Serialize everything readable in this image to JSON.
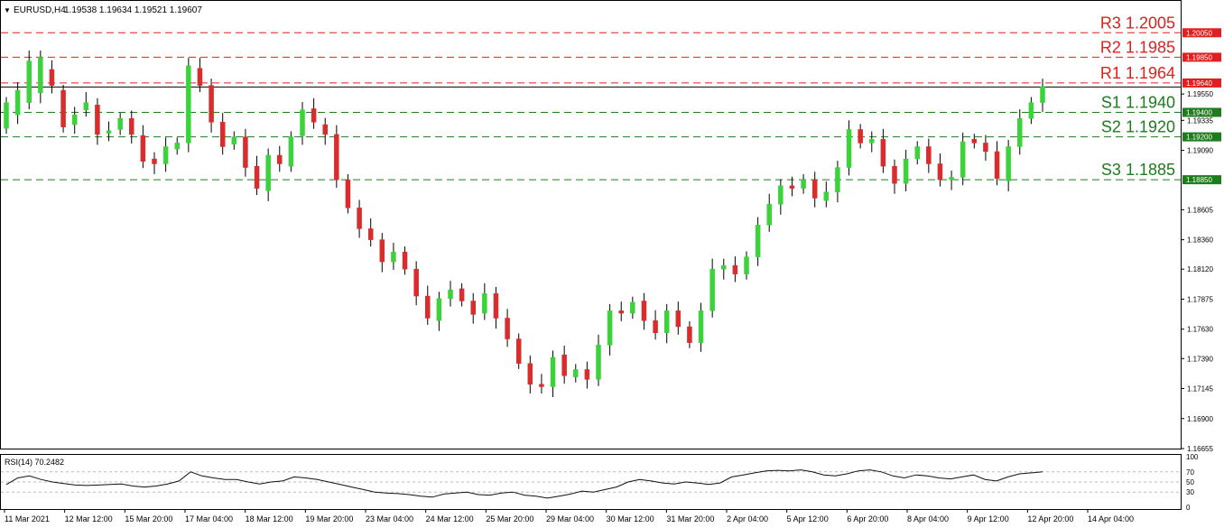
{
  "header": {
    "symbol_label": "EURUSD,H4",
    "ohlc_values": "1.19538 1.19634 1.19521 1.19607",
    "dropdown_glyph": "▼"
  },
  "rsi_header": {
    "label": "RSI(14) 70.2482"
  },
  "colors": {
    "bull": "#3cd23c",
    "bear": "#d92c2c",
    "resistance": "#e02020",
    "support": "#1e7b1e",
    "rsi_line": "#111111",
    "grid": "#bbbbbb"
  },
  "chart_data": [
    {
      "type": "candlestick",
      "title": "EURUSD,H4",
      "ylim": [
        1.16655,
        1.2031
      ],
      "price_axis_ticks": [
        "1.19550",
        "1.19335",
        "1.19090",
        "1.18605",
        "1.18360",
        "1.18120",
        "1.17875",
        "1.17630",
        "1.17390",
        "1.17145",
        "1.16900",
        "1.16655"
      ],
      "time_axis_labels": [
        "11 Mar 2021",
        "12 Mar 12:00",
        "15 Mar 20:00",
        "17 Mar 04:00",
        "18 Mar 12:00",
        "19 Mar 20:00",
        "23 Mar 04:00",
        "24 Mar 12:00",
        "25 Mar 20:00",
        "29 Mar 04:00",
        "30 Mar 12:00",
        "31 Mar 20:00",
        "2 Apr 04:00",
        "5 Apr 12:00",
        "6 Apr 20:00",
        "8 Apr 04:00",
        "9 Apr 12:00",
        "12 Apr 20:00",
        "14 Apr 04:00"
      ],
      "levels": [
        {
          "name": "R3",
          "value": 1.2005,
          "label": "R3 1.2005",
          "tag": "1.20050",
          "kind": "resistance"
        },
        {
          "name": "R2",
          "value": 1.1985,
          "label": "R2 1.1985",
          "tag": "1.19850",
          "kind": "resistance"
        },
        {
          "name": "R1",
          "value": 1.1964,
          "label": "R1 1.1964",
          "tag": "1.19640",
          "kind": "resistance"
        },
        {
          "name": "S1",
          "value": 1.194,
          "label": "S1 1.1940",
          "tag": "1.19400",
          "kind": "support"
        },
        {
          "name": "S2",
          "value": 1.192,
          "label": "S2 1.1920",
          "tag": "1.19200",
          "kind": "support"
        },
        {
          "name": "S3",
          "value": 1.1885,
          "label": "S3 1.1885",
          "tag": "1.18850",
          "kind": "support"
        }
      ],
      "current_price": 1.19607,
      "anchors": [
        [
          1.1927,
          1.1948
        ],
        [
          1.1938,
          1.1958
        ],
        [
          1.1948,
          1.1982
        ],
        [
          1.1956,
          1.1985
        ],
        [
          1.1975,
          1.1962
        ],
        [
          1.1958,
          1.1928
        ],
        [
          1.193,
          1.1938
        ],
        [
          1.1942,
          1.1948
        ],
        [
          1.1946,
          1.1922
        ],
        [
          1.1923,
          1.1925
        ],
        [
          1.1926,
          1.1935
        ],
        [
          1.1935,
          1.1922
        ],
        [
          1.1921,
          1.19
        ],
        [
          1.1902,
          1.1898
        ],
        [
          1.1898,
          1.1912
        ],
        [
          1.191,
          1.1915
        ],
        [
          1.1915,
          1.1978
        ],
        [
          1.1976,
          1.1962
        ],
        [
          1.1962,
          1.1932
        ],
        [
          1.1932,
          1.1912
        ],
        [
          1.1914,
          1.192
        ],
        [
          1.192,
          1.1895
        ],
        [
          1.1896,
          1.1878
        ],
        [
          1.1876,
          1.1905
        ],
        [
          1.1905,
          1.1898
        ],
        [
          1.1896,
          1.192
        ],
        [
          1.1921,
          1.1942
        ],
        [
          1.1943,
          1.1932
        ],
        [
          1.193,
          1.1922
        ],
        [
          1.1922,
          1.1885
        ],
        [
          1.1885,
          1.1862
        ],
        [
          1.1862,
          1.1845
        ],
        [
          1.1845,
          1.1836
        ],
        [
          1.1836,
          1.1818
        ],
        [
          1.1818,
          1.1826
        ],
        [
          1.1826,
          1.1812
        ],
        [
          1.1812,
          1.179
        ],
        [
          1.179,
          1.1772
        ],
        [
          1.177,
          1.1788
        ],
        [
          1.1788,
          1.1795
        ],
        [
          1.1796,
          1.1786
        ],
        [
          1.1786,
          1.1775
        ],
        [
          1.1776,
          1.1792
        ],
        [
          1.1792,
          1.1772
        ],
        [
          1.1772,
          1.1755
        ],
        [
          1.1755,
          1.1735
        ],
        [
          1.1735,
          1.1718
        ],
        [
          1.1718,
          1.1716
        ],
        [
          1.1716,
          1.174
        ],
        [
          1.1742,
          1.1725
        ],
        [
          1.1724,
          1.173
        ],
        [
          1.173,
          1.1722
        ],
        [
          1.1722,
          1.175
        ],
        [
          1.175,
          1.1778
        ],
        [
          1.1778,
          1.1776
        ],
        [
          1.1776,
          1.1785
        ],
        [
          1.1786,
          1.177
        ],
        [
          1.177,
          1.176
        ],
        [
          1.176,
          1.1778
        ],
        [
          1.1778,
          1.1765
        ],
        [
          1.1765,
          1.1752
        ],
        [
          1.1752,
          1.1778
        ],
        [
          1.1778,
          1.1812
        ],
        [
          1.1812,
          1.1815
        ],
        [
          1.1815,
          1.1808
        ],
        [
          1.1808,
          1.1822
        ],
        [
          1.1822,
          1.1848
        ],
        [
          1.1848,
          1.1865
        ],
        [
          1.1865,
          1.188
        ],
        [
          1.188,
          1.1878
        ],
        [
          1.1878,
          1.1885
        ],
        [
          1.1885,
          1.187
        ],
        [
          1.1868,
          1.1875
        ],
        [
          1.1875,
          1.1895
        ],
        [
          1.1895,
          1.1926
        ],
        [
          1.1926,
          1.1915
        ],
        [
          1.1915,
          1.1918
        ],
        [
          1.1918,
          1.1896
        ],
        [
          1.1896,
          1.1882
        ],
        [
          1.1882,
          1.1902
        ],
        [
          1.1902,
          1.1912
        ],
        [
          1.1912,
          1.1898
        ],
        [
          1.1898,
          1.1885
        ],
        [
          1.1885,
          1.1887
        ],
        [
          1.1887,
          1.1916
        ],
        [
          1.1918,
          1.1915
        ],
        [
          1.1915,
          1.1908
        ],
        [
          1.1908,
          1.1886
        ],
        [
          1.1884,
          1.1912
        ],
        [
          1.1912,
          1.1935
        ],
        [
          1.1935,
          1.1948
        ],
        [
          1.1948,
          1.1961
        ]
      ]
    },
    {
      "type": "line",
      "title": "RSI(14) 70.2482",
      "ylim": [
        0,
        100
      ],
      "yticks": [
        "100",
        "70",
        "50",
        "30",
        "0"
      ],
      "reference_levels": [
        70,
        50,
        30
      ],
      "last_value": 70.2482,
      "anchors": [
        45,
        58,
        62,
        55,
        50,
        47,
        44,
        43,
        44,
        45,
        46,
        42,
        40,
        42,
        46,
        52,
        70,
        62,
        58,
        55,
        55,
        50,
        46,
        50,
        52,
        60,
        58,
        55,
        50,
        45,
        40,
        35,
        30,
        28,
        27,
        25,
        22,
        20,
        26,
        28,
        30,
        25,
        24,
        28,
        30,
        24,
        22,
        18,
        22,
        26,
        32,
        30,
        35,
        40,
        50,
        55,
        52,
        48,
        46,
        50,
        48,
        45,
        48,
        60,
        64,
        68,
        72,
        73,
        72,
        74,
        70,
        64,
        62,
        66,
        72,
        74,
        70,
        62,
        58,
        64,
        62,
        58,
        56,
        60,
        64,
        55,
        52,
        60,
        66,
        68,
        70
      ]
    }
  ]
}
